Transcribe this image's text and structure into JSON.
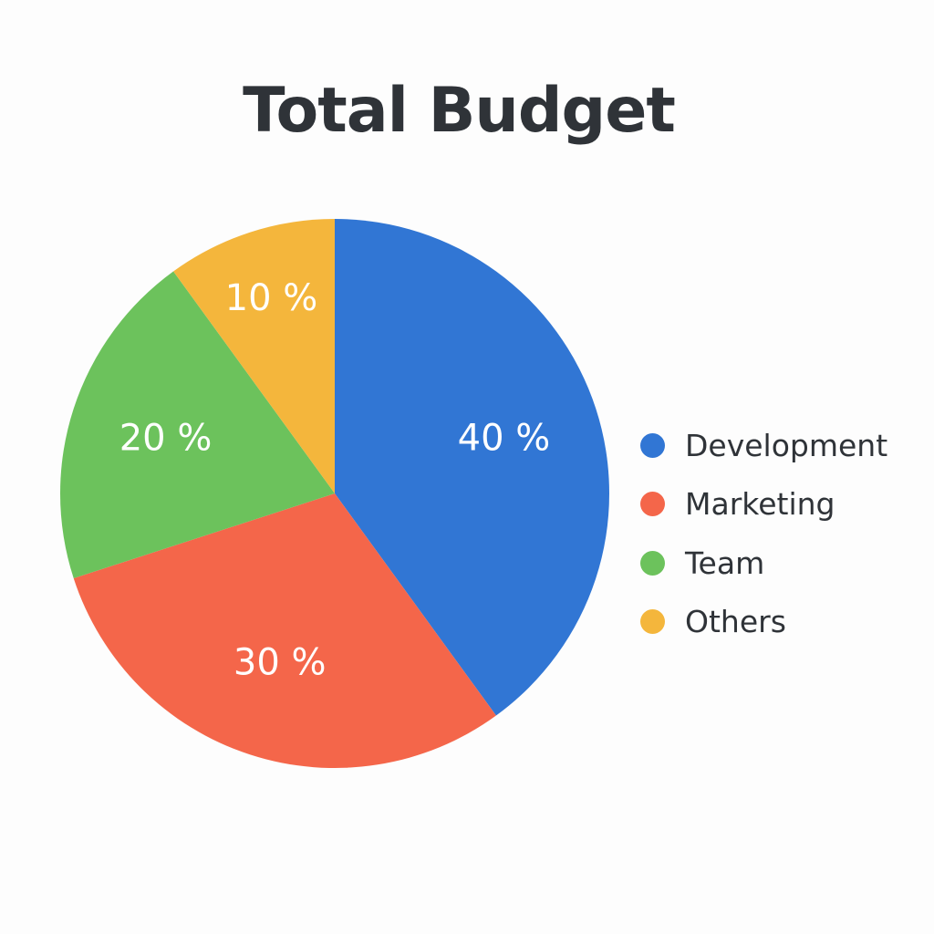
{
  "chart_data": {
    "type": "pie",
    "title": "Total Budget",
    "slices": [
      {
        "label": "Development",
        "value": 40,
        "value_label": "40 %",
        "color": "#3176d4"
      },
      {
        "label": "Marketing",
        "value": 30,
        "value_label": "30 %",
        "color": "#f4664a"
      },
      {
        "label": "Team",
        "value": 20,
        "value_label": "20 %",
        "color": "#6cc25c"
      },
      {
        "label": "Others",
        "value": 10,
        "value_label": "10 %",
        "color": "#f4b63c"
      }
    ],
    "legend_position": "right"
  }
}
